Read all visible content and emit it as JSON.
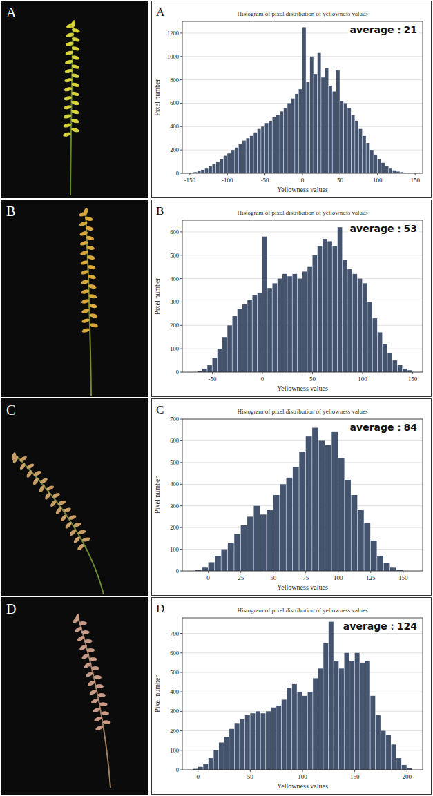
{
  "photos": [
    {
      "label": "A"
    },
    {
      "label": "B"
    },
    {
      "label": "C"
    },
    {
      "label": "D"
    }
  ],
  "chart_data": [
    {
      "type": "histogram",
      "panel": "A",
      "title": "Histogram of pixel distribution of yellowness values",
      "x_label": "Yellowness values",
      "y_label": "Pixel number",
      "annotation": "average：21",
      "bins": [
        -150,
        -145,
        -140,
        -135,
        -130,
        -125,
        -120,
        -115,
        -110,
        -105,
        -100,
        -95,
        -90,
        -85,
        -80,
        -75,
        -70,
        -65,
        -60,
        -55,
        -50,
        -45,
        -40,
        -35,
        -30,
        -25,
        -20,
        -15,
        -10,
        -5,
        0,
        5,
        10,
        15,
        20,
        25,
        30,
        35,
        40,
        45,
        50,
        55,
        60,
        65,
        70,
        75,
        80,
        85,
        90,
        95,
        100,
        105,
        110,
        115,
        120,
        125,
        130,
        135,
        140,
        145,
        150
      ],
      "values": [
        5,
        10,
        20,
        30,
        40,
        60,
        80,
        100,
        120,
        150,
        170,
        200,
        220,
        250,
        280,
        300,
        320,
        350,
        380,
        400,
        430,
        450,
        480,
        500,
        530,
        560,
        600,
        640,
        680,
        720,
        1250,
        780,
        1000,
        850,
        1030,
        820,
        900,
        750,
        700,
        880,
        620,
        600,
        560,
        500,
        450,
        380,
        320,
        260,
        200,
        160,
        120,
        90,
        60,
        40,
        25,
        15,
        10,
        5,
        3,
        2
      ],
      "color": "#44546f",
      "xlim": [
        -160,
        160
      ],
      "xticks": [
        -150,
        -100,
        -50,
        0,
        50,
        100,
        150
      ],
      "ylim": [
        0,
        1300
      ],
      "yticks": [
        0,
        200,
        400,
        600,
        800,
        1000,
        1200
      ],
      "grid": true
    },
    {
      "type": "histogram",
      "panel": "B",
      "title": "Histogram of pixel distribution of yellowness values",
      "x_label": "Yellowness values",
      "y_label": "Pixel number",
      "annotation": "average：53",
      "bins": [
        -65,
        -60,
        -55,
        -50,
        -45,
        -40,
        -35,
        -30,
        -25,
        -20,
        -15,
        -10,
        -5,
        0,
        5,
        10,
        15,
        20,
        25,
        30,
        35,
        40,
        45,
        50,
        55,
        60,
        65,
        70,
        75,
        80,
        85,
        90,
        95,
        100,
        105,
        110,
        115,
        120,
        125,
        130,
        135,
        140,
        145,
        150
      ],
      "values": [
        5,
        15,
        30,
        60,
        100,
        150,
        200,
        240,
        270,
        290,
        310,
        330,
        340,
        580,
        360,
        380,
        400,
        420,
        410,
        420,
        400,
        430,
        450,
        500,
        540,
        570,
        560,
        540,
        620,
        480,
        440,
        420,
        400,
        380,
        300,
        230,
        170,
        120,
        80,
        50,
        30,
        15,
        8
      ],
      "color": "#44546f",
      "xlim": [
        -80,
        160
      ],
      "xticks": [
        -50,
        0,
        50,
        100,
        150
      ],
      "ylim": [
        0,
        650
      ],
      "yticks": [
        0,
        100,
        200,
        300,
        400,
        500,
        600
      ],
      "grid": true
    },
    {
      "type": "histogram",
      "panel": "C",
      "title": "Histogram of pixel distribution of yellowness values",
      "x_label": "Yellowness values",
      "y_label": "Pixel number",
      "annotation": "average：84",
      "bins": [
        -10,
        -5,
        0,
        5,
        10,
        15,
        20,
        25,
        30,
        35,
        40,
        45,
        50,
        55,
        60,
        65,
        70,
        75,
        80,
        85,
        90,
        95,
        100,
        105,
        110,
        115,
        120,
        125,
        130,
        135,
        140,
        145,
        150
      ],
      "values": [
        5,
        15,
        40,
        70,
        100,
        130,
        170,
        210,
        250,
        300,
        260,
        280,
        350,
        400,
        430,
        480,
        550,
        620,
        660,
        600,
        580,
        640,
        520,
        420,
        350,
        280,
        220,
        140,
        70,
        35,
        15,
        5
      ],
      "color": "#44546f",
      "xlim": [
        -20,
        165
      ],
      "xticks": [
        0,
        25,
        50,
        75,
        100,
        125,
        150
      ],
      "ylim": [
        0,
        700
      ],
      "yticks": [
        0,
        100,
        200,
        300,
        400,
        500,
        600,
        700
      ],
      "grid": true
    },
    {
      "type": "histogram",
      "panel": "D",
      "title": "Histogram of pixel distribution of yellowness values",
      "x_label": "Yellowness values",
      "y_label": "Pixel number",
      "annotation": "average：124",
      "bins": [
        -5,
        0,
        5,
        10,
        15,
        20,
        25,
        30,
        35,
        40,
        45,
        50,
        55,
        60,
        65,
        70,
        75,
        80,
        85,
        90,
        95,
        100,
        105,
        110,
        115,
        120,
        125,
        130,
        135,
        140,
        145,
        150,
        155,
        160,
        165,
        170,
        175,
        180,
        185,
        190,
        195,
        200,
        205
      ],
      "values": [
        5,
        15,
        30,
        60,
        100,
        140,
        170,
        210,
        240,
        260,
        280,
        290,
        300,
        290,
        300,
        320,
        330,
        360,
        420,
        440,
        400,
        380,
        400,
        470,
        520,
        650,
        760,
        560,
        520,
        600,
        560,
        600,
        550,
        560,
        380,
        280,
        200,
        180,
        130,
        60,
        25,
        8
      ],
      "color": "#44546f",
      "xlim": [
        -15,
        215
      ],
      "xticks": [
        0,
        50,
        100,
        150,
        200
      ],
      "ylim": [
        0,
        780
      ],
      "yticks": [
        0,
        100,
        200,
        300,
        400,
        500,
        600,
        700
      ],
      "grid": true
    }
  ]
}
